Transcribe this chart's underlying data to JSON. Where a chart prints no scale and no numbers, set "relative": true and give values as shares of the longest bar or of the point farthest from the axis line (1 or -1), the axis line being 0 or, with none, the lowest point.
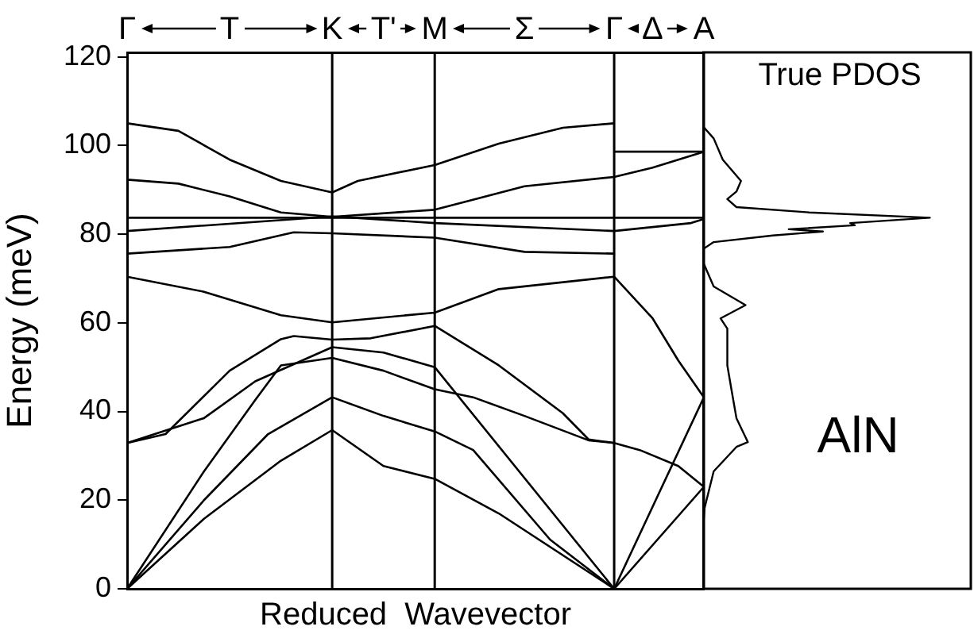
{
  "chart_data": [
    {
      "type": "line",
      "ylabel": "Energy (meV)",
      "xlabel": "Reduced  Wavevector",
      "ylim": [
        0,
        121
      ],
      "yticks": [
        0,
        20,
        40,
        60,
        80,
        100,
        120
      ],
      "categories": [
        "Γ",
        null,
        null,
        null,
        null,
        null,
        null,
        null,
        "T",
        null,
        null,
        null,
        null,
        null,
        null,
        null,
        "K",
        null,
        null,
        null,
        "T'",
        null,
        null,
        null,
        "M",
        null,
        null,
        null,
        null,
        null,
        null,
        "Σ",
        null,
        null,
        null,
        null,
        null,
        null,
        "Γ",
        null,
        null,
        "Δ",
        null,
        null,
        null,
        "A"
      ],
      "grid": false,
      "legend": false,
      "marker": "none",
      "line_style": "solid",
      "ref_lines": [
        {
          "axis": "x",
          "value": "K"
        },
        {
          "axis": "x",
          "value": "M"
        },
        {
          "axis": "x",
          "value": "Γ"
        }
      ],
      "series": [
        {
          "color": "#000000",
          "values": [
            105,
            null,
            null,
            null,
            103.3,
            null,
            null,
            null,
            96.8,
            null,
            null,
            null,
            92,
            null,
            null,
            null,
            89.4,
            null,
            92,
            null,
            null,
            null,
            null,
            null,
            95.6,
            null,
            null,
            null,
            null,
            100.4,
            null,
            null,
            null,
            null,
            104,
            null,
            null,
            null,
            105,
            null,
            null,
            null,
            null,
            null,
            null,
            null
          ]
        },
        {
          "color": "#000000",
          "values": [
            92.3,
            null,
            null,
            null,
            91.4,
            null,
            null,
            null,
            88.5,
            null,
            null,
            null,
            84.9,
            null,
            null,
            null,
            83.9,
            null,
            null,
            null,
            null,
            null,
            null,
            null,
            85.5,
            null,
            null,
            null,
            null,
            null,
            null,
            90.8,
            null,
            null,
            null,
            null,
            null,
            null,
            92.9,
            null,
            null,
            95,
            null,
            null,
            null,
            98.6
          ]
        },
        {
          "color": "#000000",
          "values": [
            null,
            null,
            null,
            null,
            null,
            null,
            null,
            null,
            null,
            null,
            null,
            null,
            null,
            null,
            null,
            null,
            null,
            null,
            null,
            null,
            null,
            null,
            null,
            null,
            null,
            null,
            null,
            null,
            null,
            null,
            null,
            null,
            null,
            null,
            null,
            null,
            null,
            null,
            98.6,
            null,
            null,
            null,
            null,
            null,
            null,
            98.6
          ]
        },
        {
          "color": "#000000",
          "values": [
            83.7,
            null,
            null,
            null,
            null,
            null,
            null,
            null,
            null,
            null,
            null,
            null,
            null,
            null,
            null,
            null,
            null,
            null,
            null,
            null,
            null,
            null,
            null,
            null,
            null,
            null,
            null,
            null,
            null,
            null,
            null,
            null,
            null,
            null,
            null,
            null,
            null,
            null,
            null,
            null,
            null,
            null,
            null,
            null,
            null,
            83.7
          ]
        },
        {
          "color": "#000000",
          "values": [
            80.7,
            null,
            null,
            null,
            null,
            null,
            null,
            null,
            null,
            null,
            null,
            null,
            null,
            null,
            null,
            null,
            84,
            null,
            null,
            null,
            null,
            null,
            null,
            null,
            82.5,
            null,
            null,
            null,
            null,
            null,
            null,
            null,
            null,
            null,
            null,
            null,
            null,
            null,
            80.7,
            null,
            null,
            null,
            null,
            null,
            82.5,
            83.4
          ]
        },
        {
          "color": "#000000",
          "values": [
            75.6,
            null,
            null,
            null,
            null,
            null,
            null,
            null,
            77.1,
            null,
            null,
            null,
            null,
            80.4,
            null,
            null,
            80.2,
            null,
            null,
            null,
            null,
            null,
            null,
            null,
            79.2,
            null,
            null,
            null,
            null,
            null,
            null,
            76,
            null,
            null,
            null,
            null,
            null,
            null,
            75.6,
            null,
            null,
            null,
            null,
            null,
            null,
            null
          ]
        },
        {
          "color": "#000000",
          "values": [
            70.4,
            null,
            null,
            null,
            null,
            null,
            67,
            null,
            null,
            null,
            null,
            null,
            61.7,
            null,
            null,
            null,
            60.1,
            null,
            null,
            null,
            null,
            null,
            null,
            null,
            62.3,
            null,
            null,
            null,
            null,
            67.6,
            null,
            null,
            null,
            null,
            null,
            null,
            null,
            null,
            70.4,
            null,
            null,
            61,
            null,
            51.5,
            null,
            43.2
          ]
        },
        {
          "color": "#000000",
          "values": [
            32.9,
            null,
            null,
            34.9,
            null,
            null,
            null,
            null,
            49.2,
            null,
            null,
            null,
            56.3,
            57,
            null,
            null,
            56.2,
            null,
            null,
            56.5,
            null,
            null,
            null,
            null,
            59.3,
            null,
            null,
            null,
            null,
            50.4,
            null,
            null,
            null,
            null,
            39.6,
            null,
            33.7,
            null,
            32.9,
            null,
            null,
            null,
            null,
            null,
            null,
            null
          ]
        },
        {
          "color": "#000000",
          "values": [
            32.9,
            null,
            null,
            null,
            null,
            null,
            38.5,
            null,
            null,
            null,
            46.8,
            null,
            null,
            null,
            null,
            null,
            54.5,
            null,
            null,
            null,
            53.3,
            null,
            null,
            null,
            50,
            null,
            null,
            null,
            null,
            null,
            null,
            null,
            null,
            null,
            null,
            null,
            null,
            null,
            0,
            null,
            null,
            null,
            null,
            null,
            null,
            null
          ]
        },
        {
          "color": "#000000",
          "values": [
            0,
            null,
            null,
            null,
            null,
            null,
            26.5,
            null,
            null,
            null,
            42.6,
            null,
            50.4,
            null,
            null,
            null,
            52.1,
            null,
            null,
            null,
            49.2,
            null,
            null,
            null,
            45,
            null,
            null,
            43.2,
            null,
            null,
            null,
            39,
            null,
            null,
            null,
            null,
            33.5,
            null,
            32.9,
            null,
            31.3,
            null,
            null,
            27.7,
            null,
            23
          ]
        },
        {
          "color": "#000000",
          "values": [
            0,
            null,
            null,
            null,
            null,
            null,
            20,
            null,
            null,
            null,
            null,
            34.9,
            null,
            null,
            null,
            null,
            43.2,
            null,
            null,
            null,
            39,
            null,
            null,
            null,
            35.5,
            null,
            null,
            31.3,
            null,
            null,
            null,
            null,
            null,
            11.1,
            null,
            null,
            null,
            null,
            0,
            null,
            null,
            null,
            null,
            null,
            null,
            43.2
          ]
        },
        {
          "color": "#000000",
          "values": [
            0,
            null,
            null,
            null,
            null,
            null,
            15.8,
            null,
            null,
            null,
            null,
            null,
            28.9,
            null,
            null,
            null,
            35.8,
            null,
            null,
            null,
            27.7,
            null,
            null,
            null,
            24.8,
            null,
            null,
            null,
            null,
            17,
            null,
            null,
            null,
            null,
            null,
            null,
            null,
            null,
            0,
            null,
            null,
            null,
            null,
            null,
            null,
            23
          ]
        }
      ]
    },
    {
      "type": "line",
      "title": "True PDOS",
      "annotations": [
        "AlN"
      ],
      "relative": true,
      "orientation": "horizontal",
      "ylim": [
        0,
        121
      ],
      "tick_labels": false,
      "legend": false,
      "marker": "none",
      "color": "#000000",
      "x": [
        104.5,
        101.6,
        96.8,
        92,
        89.6,
        87.9,
        86.1,
        84.9,
        83.7,
        82.5,
        82,
        81.1,
        80.6,
        79.7,
        78.2,
        76.5,
        74.1,
        68.2,
        64,
        61,
        58.7,
        50.4,
        44.4,
        38.5,
        33.1,
        32,
        26.5,
        18.2,
        11.1
      ],
      "values": [
        0,
        0.05,
        0.09,
        0.17,
        0.15,
        0.11,
        0.15,
        0.47,
        1,
        0.65,
        0.67,
        0.38,
        0.53,
        0.31,
        0.05,
        0,
        0,
        0.05,
        0.19,
        0.08,
        0.11,
        0.11,
        0.13,
        0.15,
        0.2,
        0.15,
        0.05,
        0.01,
        0
      ]
    }
  ]
}
